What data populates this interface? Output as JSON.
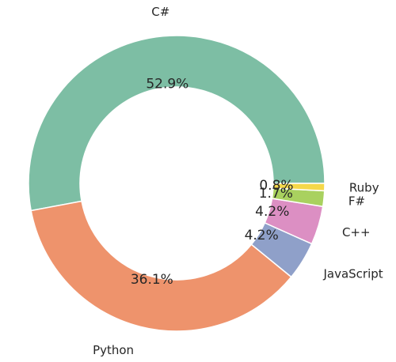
{
  "chart_data": {
    "type": "pie",
    "style": "donut",
    "categories": [
      "C#",
      "Python",
      "JavaScript",
      "C++",
      "F#",
      "Ruby"
    ],
    "values": [
      52.9,
      36.1,
      4.2,
      4.2,
      1.7,
      0.8
    ],
    "value_labels": [
      "52.9%",
      "36.1%",
      "4.2%",
      "4.2%",
      "1.7%",
      "0.8%"
    ],
    "colors": [
      "#7dbea4",
      "#ee936c",
      "#8fa0c9",
      "#dc8fc3",
      "#a9d15f",
      "#f5d84a"
    ],
    "start_angle_deg": 0,
    "direction": "counterclockwise",
    "legend": "none",
    "title": ""
  }
}
